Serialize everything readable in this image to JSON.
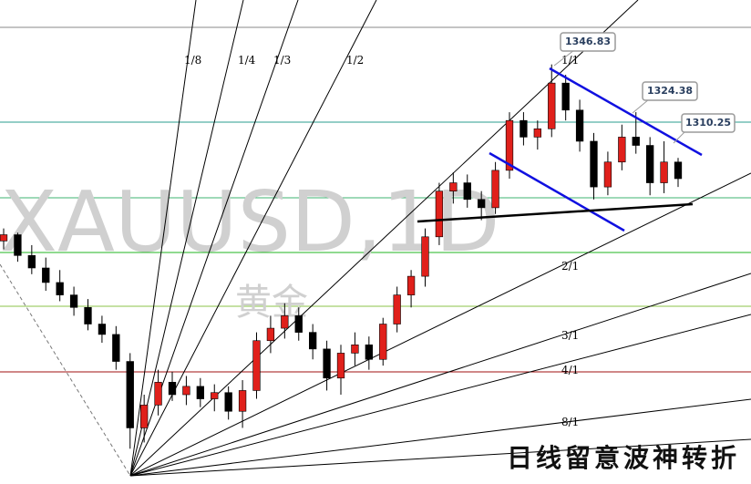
{
  "chart_data": {
    "type": "candlestick",
    "title": "XAUUSD,1D",
    "watermark": "黄金",
    "caption": "日线留意波神转折",
    "ylim": [
      1145,
      1378
    ],
    "up_color": "#e0201b",
    "down_color": "#000000",
    "open": [
      1262,
      1265,
      1255,
      1249,
      1242,
      1236,
      1230,
      1222,
      1217,
      1204,
      1172,
      1183,
      1194,
      1188,
      1192,
      1186,
      1189,
      1180,
      1190,
      1214,
      1220,
      1226,
      1218,
      1210,
      1196,
      1208,
      1212,
      1205,
      1222,
      1236,
      1245,
      1264,
      1286,
      1290,
      1282,
      1278,
      1296,
      1320,
      1312,
      1316,
      1338,
      1325,
      1310,
      1288,
      1300,
      1312,
      1308,
      1290,
      1300
    ],
    "high": [
      1268,
      1266,
      1260,
      1254,
      1248,
      1240,
      1234,
      1226,
      1221,
      1208,
      1188,
      1200,
      1199,
      1197,
      1196,
      1193,
      1192,
      1195,
      1218,
      1226,
      1232,
      1230,
      1222,
      1214,
      1212,
      1218,
      1216,
      1225,
      1240,
      1248,
      1268,
      1290,
      1295,
      1294,
      1286,
      1300,
      1324,
      1324,
      1320,
      1347,
      1342,
      1330,
      1314,
      1305,
      1318,
      1324,
      1312,
      1310,
      1302
    ],
    "low": [
      1258,
      1252,
      1246,
      1238,
      1233,
      1226,
      1219,
      1213,
      1200,
      1162,
      1165,
      1178,
      1185,
      1183,
      1182,
      1180,
      1176,
      1172,
      1186,
      1208,
      1215,
      1214,
      1205,
      1190,
      1188,
      1202,
      1200,
      1202,
      1218,
      1230,
      1240,
      1260,
      1280,
      1278,
      1272,
      1275,
      1292,
      1308,
      1306,
      1312,
      1320,
      1305,
      1282,
      1284,
      1296,
      1304,
      1284,
      1285,
      1288
    ],
    "close": [
      1265,
      1255,
      1249,
      1242,
      1236,
      1230,
      1222,
      1217,
      1204,
      1172,
      1183,
      1194,
      1188,
      1192,
      1186,
      1189,
      1180,
      1190,
      1214,
      1220,
      1226,
      1218,
      1210,
      1196,
      1208,
      1212,
      1205,
      1222,
      1236,
      1245,
      1264,
      1286,
      1290,
      1282,
      1278,
      1296,
      1320,
      1312,
      1316,
      1338,
      1325,
      1310,
      1288,
      1300,
      1312,
      1308,
      1290,
      1300,
      1292
    ],
    "fan_labels": [
      "1/8",
      "1/4",
      "1/3",
      "1/2",
      "1/1",
      "2/1",
      "3/1",
      "4/1",
      "8/1"
    ],
    "price_labels": [
      1346.83,
      1324.38,
      1310.25
    ]
  }
}
